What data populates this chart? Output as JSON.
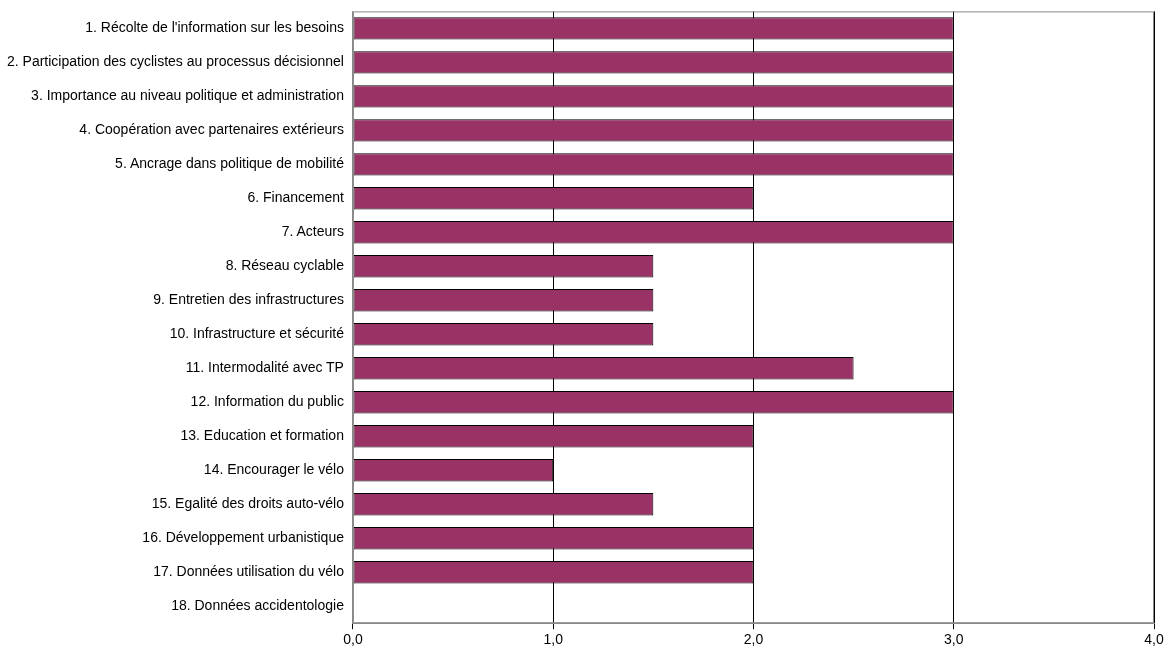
{
  "chart_data": {
    "type": "bar",
    "orientation": "horizontal",
    "categories": [
      "1. Récolte de l'information sur les besoins",
      "2. Participation des cyclistes au processus décisionnel",
      "3. Importance au niveau politique et administration",
      "4. Coopération avec partenaires extérieurs",
      "5. Ancrage dans politique de mobilité",
      "6. Financement",
      "7. Acteurs",
      "8. Réseau cyclable",
      "9. Entretien des infrastructures",
      "10. Infrastructure et sécurité",
      "11. Intermodalité avec TP",
      "12. Information du public",
      "13. Education et formation",
      "14. Encourager le vélo",
      "15. Egalité des droits auto-vélo",
      "16. Développement urbanistique",
      "17. Données utilisation du vélo",
      "18. Données accidentologie"
    ],
    "values": [
      3,
      3,
      3,
      3,
      3,
      2,
      3,
      1.5,
      1.5,
      1.5,
      2.5,
      3,
      2,
      1,
      1.5,
      2,
      2,
      null
    ],
    "color": "#993366",
    "xlim": [
      0,
      4
    ],
    "xticks": [
      {
        "value": 0,
        "label": "0,0"
      },
      {
        "value": 1,
        "label": "1,0"
      },
      {
        "value": 2,
        "label": "2,0"
      },
      {
        "value": 3,
        "label": "3,0"
      },
      {
        "value": 4,
        "label": "4,0"
      }
    ],
    "grid": "x",
    "legend": false
  }
}
